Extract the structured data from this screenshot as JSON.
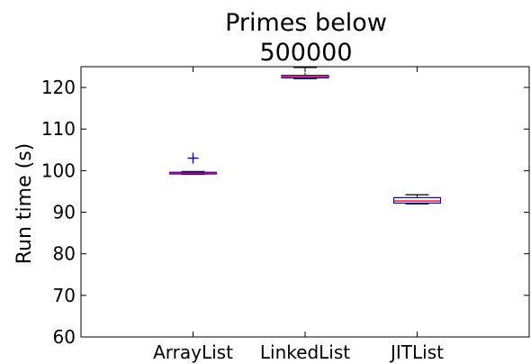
{
  "chart_data": {
    "type": "box",
    "title": "Primes below 500000",
    "title_lines": [
      "Primes below",
      "500000"
    ],
    "xlabel": "",
    "ylabel": "Run time (s)",
    "ylim": [
      60,
      125
    ],
    "yticks": [
      60,
      70,
      80,
      90,
      100,
      110,
      120
    ],
    "grid": false,
    "categories": [
      "ArrayList",
      "LinkedList",
      "JITList"
    ],
    "boxes": [
      {
        "category": "ArrayList",
        "whisker_low": 99.1,
        "q1": 99.2,
        "median": 99.4,
        "q3": 99.6,
        "whisker_high": 99.8,
        "outliers": [
          103.0
        ]
      },
      {
        "category": "LinkedList",
        "whisker_low": 122.1,
        "q1": 122.3,
        "median": 122.6,
        "q3": 122.9,
        "whisker_high": 124.8,
        "outliers": []
      },
      {
        "category": "JITList",
        "whisker_low": 92.0,
        "q1": 92.2,
        "median": 92.7,
        "q3": 93.5,
        "whisker_high": 94.2,
        "outliers": []
      }
    ],
    "colors": {
      "box": "#0000ff",
      "median": "#ff0000",
      "whisker": "#000000",
      "outlier": "#0000ff"
    }
  }
}
